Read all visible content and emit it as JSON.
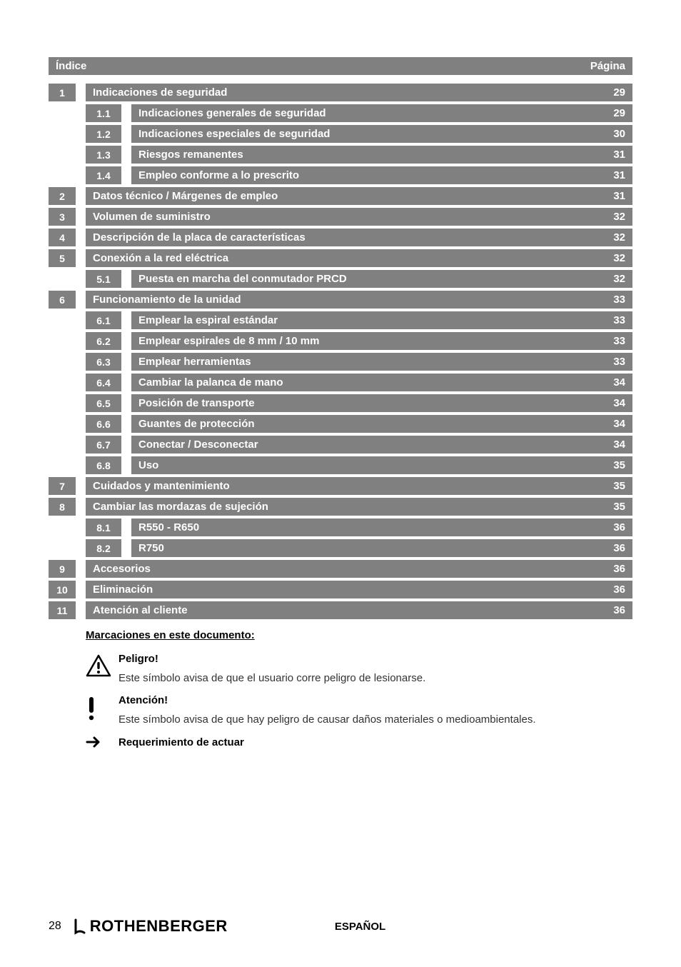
{
  "colors": {
    "row_bg": "#808080",
    "row_text": "#ffffff",
    "body_text": "#333333"
  },
  "header": {
    "left": "Índice",
    "right": "Página"
  },
  "toc": [
    {
      "level": 1,
      "num": "1",
      "title": "Indicaciones de seguridad",
      "page": "29"
    },
    {
      "level": 2,
      "num": "1.1",
      "title": "Indicaciones generales de seguridad",
      "page": "29"
    },
    {
      "level": 2,
      "num": "1.2",
      "title": "Indicaciones especiales de seguridad",
      "page": "30"
    },
    {
      "level": 2,
      "num": "1.3",
      "title": "Riesgos remanentes",
      "page": "31"
    },
    {
      "level": 2,
      "num": "1.4",
      "title": "Empleo conforme a lo prescrito",
      "page": "31"
    },
    {
      "level": 1,
      "num": "2",
      "title": "Datos técnico / Márgenes de empleo",
      "page": "31"
    },
    {
      "level": 1,
      "num": "3",
      "title": "Volumen de suministro",
      "page": "32"
    },
    {
      "level": 1,
      "num": "4",
      "title": "Descripción de la placa de características",
      "page": "32"
    },
    {
      "level": 1,
      "num": "5",
      "title": "Conexión a la red eléctrica",
      "page": "32"
    },
    {
      "level": 2,
      "num": "5.1",
      "title": "Puesta en marcha del conmutador PRCD",
      "page": "32"
    },
    {
      "level": 1,
      "num": "6",
      "title": "Funcionamiento de la unidad",
      "page": "33"
    },
    {
      "level": 2,
      "num": "6.1",
      "title": "Emplear la espiral estándar",
      "page": "33"
    },
    {
      "level": 2,
      "num": "6.2",
      "title": "Emplear espirales de 8 mm / 10 mm",
      "page": "33"
    },
    {
      "level": 2,
      "num": "6.3",
      "title": "Emplear herramientas",
      "page": "33"
    },
    {
      "level": 2,
      "num": "6.4",
      "title": "Cambiar la palanca de mano",
      "page": "34"
    },
    {
      "level": 2,
      "num": "6.5",
      "title": "Posición de transporte",
      "page": "34"
    },
    {
      "level": 2,
      "num": "6.6",
      "title": "Guantes de protección",
      "page": "34"
    },
    {
      "level": 2,
      "num": "6.7",
      "title": "Conectar / Desconectar",
      "page": "34"
    },
    {
      "level": 2,
      "num": "6.8",
      "title": "Uso",
      "page": "35"
    },
    {
      "level": 1,
      "num": "7",
      "title": "Cuidados y mantenimiento",
      "page": "35"
    },
    {
      "level": 1,
      "num": "8",
      "title": "Cambiar las mordazas de sujeción",
      "page": "35"
    },
    {
      "level": 2,
      "num": "8.1",
      "title": "R550 - R650",
      "page": "36"
    },
    {
      "level": 2,
      "num": "8.2",
      "title": "R750",
      "page": "36"
    },
    {
      "level": 1,
      "num": "9",
      "title": "Accesorios",
      "page": "36"
    },
    {
      "level": 1,
      "num": "10",
      "title": "Eliminación",
      "page": "36"
    },
    {
      "level": 1,
      "num": "11",
      "title": "Atención al cliente",
      "page": "36"
    }
  ],
  "notes": {
    "heading": "Marcaciones en este documento:",
    "items": [
      {
        "icon": "warning-triangle",
        "title": "Peligro!",
        "body": "Este símbolo avisa de que el usuario corre peligro de lesionarse."
      },
      {
        "icon": "exclamation",
        "title": "Atención!",
        "body": "Este símbolo avisa de que hay peligro de causar daños materiales o medioambientales."
      },
      {
        "icon": "arrow-right",
        "title": "Requerimiento de actuar",
        "body": ""
      }
    ]
  },
  "footer": {
    "page_number": "28",
    "logo_text": "ROTHENBERGER",
    "language": "ESPAÑOL"
  }
}
